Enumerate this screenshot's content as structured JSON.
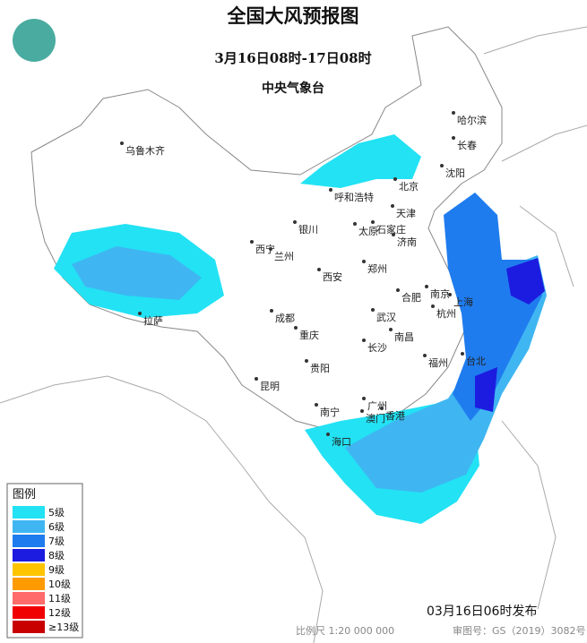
{
  "header": {
    "title": "全国大风预报图",
    "subtitle": "3月16日08时-17日08时",
    "agency": "中央气象台"
  },
  "legend": {
    "title": "图例",
    "items": [
      {
        "label": "5级",
        "color": "#22e2f4"
      },
      {
        "label": "6级",
        "color": "#3fb6f2"
      },
      {
        "label": "7级",
        "color": "#1f7cee"
      },
      {
        "label": "8级",
        "color": "#1c1ce0"
      },
      {
        "label": "9级",
        "color": "#ffc400"
      },
      {
        "label": "10级",
        "color": "#ff9a00"
      },
      {
        "label": "11级",
        "color": "#ff6a6a"
      },
      {
        "label": "12级",
        "color": "#f00000"
      },
      {
        "label": "≥13级",
        "color": "#c80000"
      }
    ]
  },
  "cities": [
    "乌鲁木齐",
    "哈尔滨",
    "长春",
    "沈阳",
    "北京",
    "呼和浩特",
    "天津",
    "银川",
    "太原",
    "石家庄",
    "济南",
    "西宁",
    "兰州",
    "郑州",
    "西安",
    "合肥",
    "南京",
    "上海",
    "杭州",
    "武汉",
    "成都",
    "重庆",
    "拉萨",
    "南昌",
    "长沙",
    "贵阳",
    "福州",
    "台北",
    "昆明",
    "广州",
    "南宁",
    "香港",
    "澳门",
    "海口"
  ],
  "footer": {
    "issued": "03月16日06时发布",
    "scale": "比例尺 1:20 000 000",
    "map_number": "审图号：GS（2019）3082号"
  }
}
